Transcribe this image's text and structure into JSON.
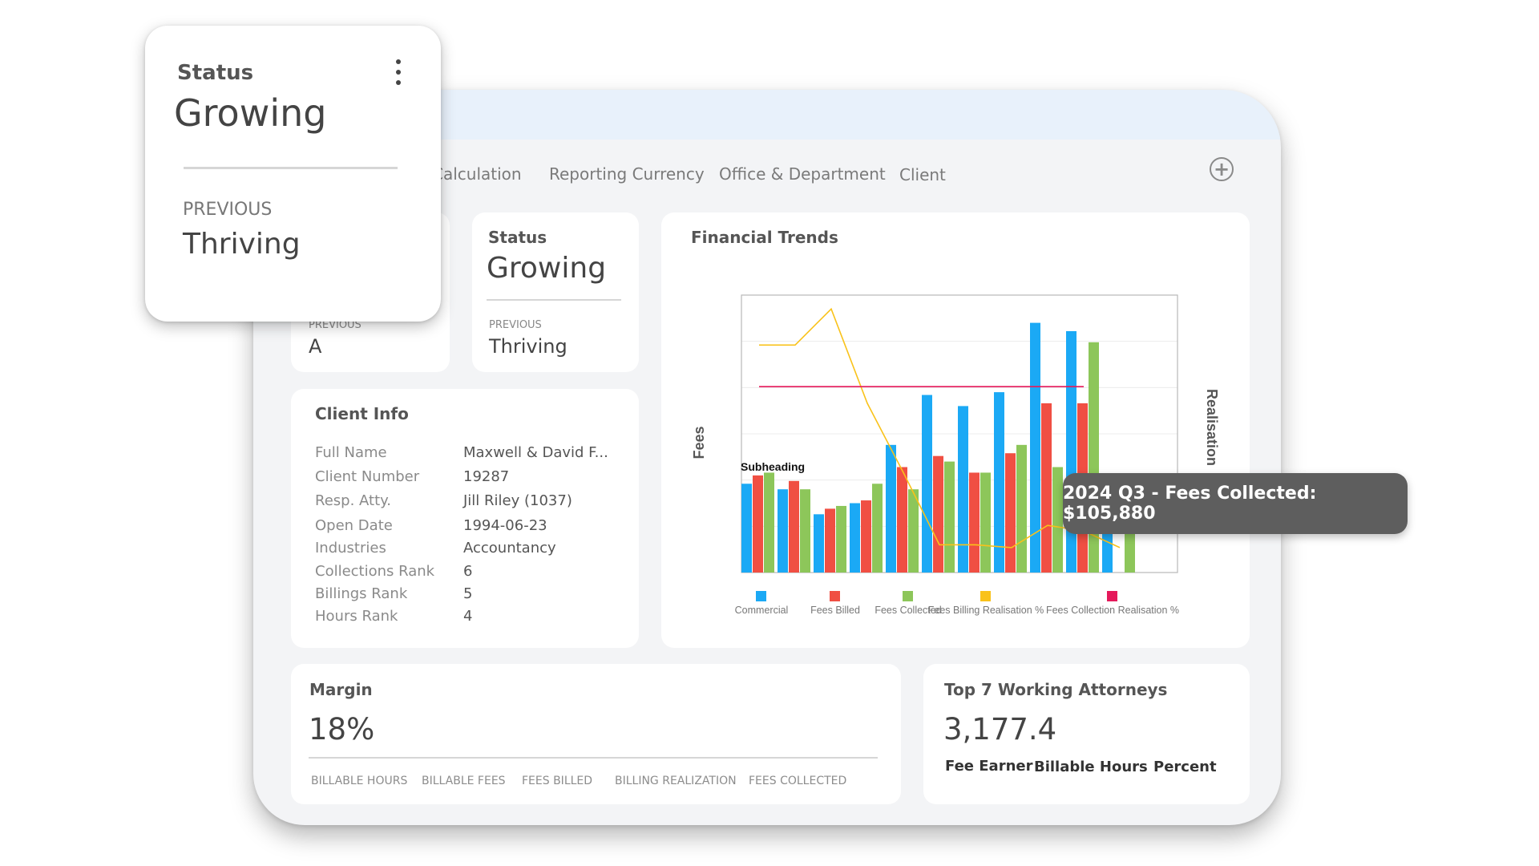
{
  "tabs": [
    "Calculation",
    "Reporting Currency",
    "Office & Department",
    "Client"
  ],
  "top_cards": {
    "left": {
      "previous_label": "PREVIOUS",
      "previous_value": "A"
    },
    "status": {
      "title": "Status",
      "value": "Growing",
      "previous_label": "PREVIOUS",
      "previous_value": "Thriving"
    }
  },
  "client_info": {
    "title": "Client Info",
    "rows": [
      {
        "label": "Full Name",
        "value": "Maxwell & David F..."
      },
      {
        "label": "Client Number",
        "value": "19287"
      },
      {
        "label": "Resp. Atty.",
        "value": "Jill Riley (1037)"
      },
      {
        "label": "Open Date",
        "value": "1994-06-23"
      },
      {
        "label": "Industries",
        "value": "Accountancy"
      },
      {
        "label": "Collections Rank",
        "value": "6"
      },
      {
        "label": "Billings Rank",
        "value": "5"
      },
      {
        "label": "Hours Rank",
        "value": "4"
      }
    ]
  },
  "financial_trends": {
    "title": "Financial Trends",
    "subheading": "Subheading",
    "tooltip": "2024 Q3 - Fees Collected: $105,880"
  },
  "chart_data": {
    "type": "bar",
    "title": "Financial Trends",
    "ylabel": "Fees",
    "y2label": "Realisation",
    "categories": [
      "",
      "",
      "",
      "",
      "",
      "",
      "",
      "",
      "",
      "",
      ""
    ],
    "series": [
      {
        "name": "Commercial",
        "type": "bar",
        "color": "#1ba9f5",
        "values": [
          32,
          30,
          21,
          25,
          46,
          64,
          60,
          65,
          90,
          87,
          32
        ]
      },
      {
        "name": "Fees Billed",
        "type": "bar",
        "color": "#f04f43",
        "values": [
          35,
          33,
          23,
          26,
          38,
          42,
          36,
          43,
          61,
          61,
          0
        ]
      },
      {
        "name": "Fees Collected",
        "type": "bar",
        "color": "#8dc65a",
        "values": [
          36,
          30,
          24,
          32,
          30,
          40,
          36,
          46,
          38,
          83,
          15
        ]
      },
      {
        "name": "Fees Billing Realisation %",
        "type": "line",
        "color": "#f9c21a",
        "values": [
          82,
          82,
          95,
          61,
          36,
          10,
          10,
          9,
          17,
          15,
          9
        ]
      },
      {
        "name": "Fees Collection Realisation %",
        "type": "line",
        "color": "#e5195b",
        "values": [
          67,
          67,
          67,
          67,
          67,
          67,
          67,
          67,
          67,
          67,
          null
        ]
      }
    ],
    "legend_placement": "bottom",
    "grid": true,
    "ylim": [
      0,
      100
    ]
  },
  "margin": {
    "title": "Margin",
    "value": "18%",
    "metrics": [
      "BILLABLE HOURS",
      "BILLABLE FEES",
      "FEES BILLED",
      "BILLING REALIZATION",
      "FEES COLLECTED"
    ]
  },
  "attorneys": {
    "title": "Top 7 Working Attorneys",
    "value": "3,177.4",
    "columns": [
      "Fee Earner",
      "Billable Hours",
      "Percent"
    ]
  },
  "popover": {
    "title": "Status",
    "value": "Growing",
    "previous_label": "PREVIOUS",
    "previous_value": "Thriving",
    "menu_icon": "more-vertical-icon"
  }
}
